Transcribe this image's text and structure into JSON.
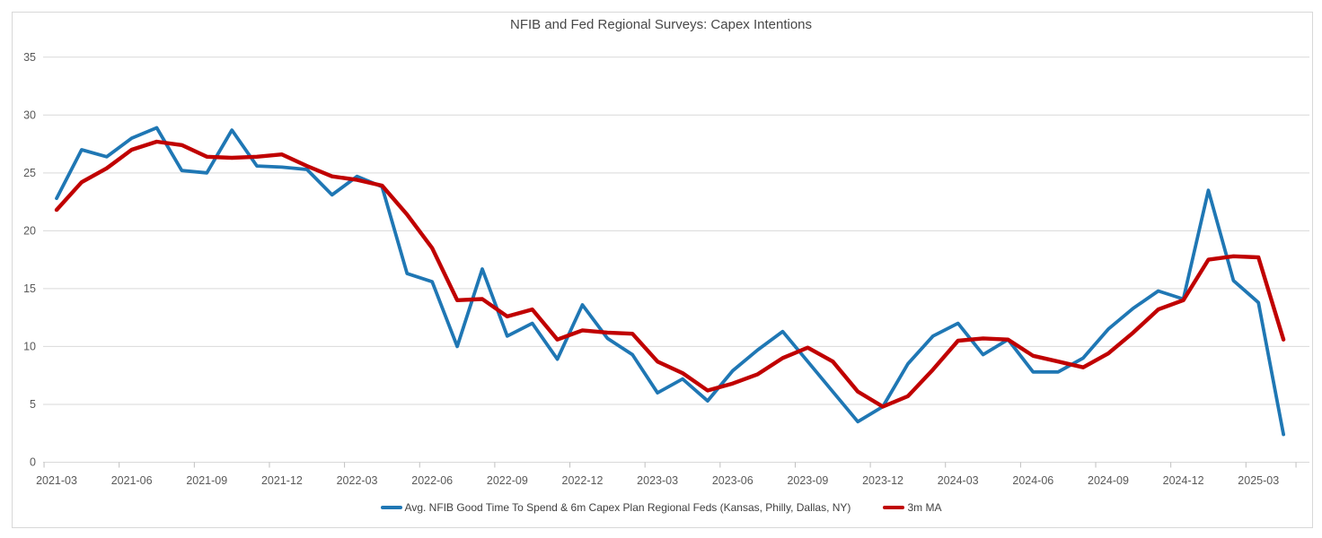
{
  "chart_data": {
    "type": "line",
    "title": "NFIB and Fed Regional Surveys: Capex Intentions",
    "x": [
      "2021-03",
      "2021-04",
      "2021-05",
      "2021-06",
      "2021-07",
      "2021-08",
      "2021-09",
      "2021-10",
      "2021-11",
      "2021-12",
      "2022-01",
      "2022-02",
      "2022-03",
      "2022-04",
      "2022-05",
      "2022-06",
      "2022-07",
      "2022-08",
      "2022-09",
      "2022-10",
      "2022-11",
      "2022-12",
      "2023-01",
      "2023-02",
      "2023-03",
      "2023-04",
      "2023-05",
      "2023-06",
      "2023-07",
      "2023-08",
      "2023-09",
      "2023-10",
      "2023-11",
      "2023-12",
      "2024-01",
      "2024-02",
      "2024-03",
      "2024-04",
      "2024-05",
      "2024-06",
      "2024-07",
      "2024-08",
      "2024-09",
      "2024-10",
      "2024-11",
      "2024-12",
      "2025-01",
      "2025-02",
      "2025-03",
      "2025-04"
    ],
    "series": [
      {
        "name": "Avg. NFIB Good Time To Spend & 6m Capex Plan Regional Feds (Kansas, Philly, Dallas, NY)",
        "color": "#1F77B4",
        "values": [
          22.8,
          27.0,
          26.4,
          28.0,
          28.9,
          25.2,
          25.0,
          28.7,
          25.6,
          25.5,
          25.3,
          23.1,
          24.7,
          23.8,
          16.3,
          15.6,
          10.0,
          16.7,
          10.9,
          12.0,
          8.9,
          13.6,
          10.7,
          9.3,
          6.0,
          7.2,
          5.3,
          7.9,
          9.7,
          11.3,
          8.7,
          6.1,
          3.5,
          4.8,
          8.5,
          10.9,
          12.0,
          9.3,
          10.6,
          7.8,
          7.8,
          9.0,
          11.5,
          13.3,
          14.8,
          14.1,
          23.5,
          15.7,
          13.8,
          2.4
        ]
      },
      {
        "name": "3m MA",
        "color": "#C00000",
        "values": [
          21.8,
          24.2,
          25.4,
          27.0,
          27.7,
          27.4,
          26.4,
          26.3,
          26.4,
          26.6,
          25.6,
          24.7,
          24.4,
          23.9,
          21.4,
          18.5,
          14.0,
          14.1,
          12.6,
          13.2,
          10.6,
          11.4,
          11.2,
          11.1,
          8.7,
          7.7,
          6.2,
          6.8,
          7.6,
          9.0,
          9.9,
          8.7,
          6.1,
          4.8,
          5.7,
          8.0,
          10.5,
          10.7,
          10.6,
          9.2,
          8.7,
          8.2,
          9.4,
          11.2,
          13.2,
          14.0,
          17.5,
          17.8,
          17.7,
          10.6
        ]
      }
    ],
    "ylim": [
      0,
      35
    ],
    "y_ticks": [
      0,
      5,
      10,
      15,
      20,
      25,
      30,
      35
    ],
    "x_tick_labels": [
      "2021-03",
      "2021-06",
      "2021-09",
      "2021-12",
      "2022-03",
      "2022-06",
      "2022-09",
      "2022-12",
      "2023-03",
      "2023-06",
      "2023-09",
      "2023-12",
      "2024-03",
      "2024-06",
      "2024-09",
      "2024-12",
      "2025-03"
    ],
    "grid": true,
    "legend_position": "bottom",
    "colors": {
      "gridline": "#D9D9D9",
      "axis_tick": "#BFBFBF",
      "axis_text": "#595959",
      "title_text": "#484848",
      "legend_text": "#404040",
      "background": "#FFFFFF"
    }
  }
}
